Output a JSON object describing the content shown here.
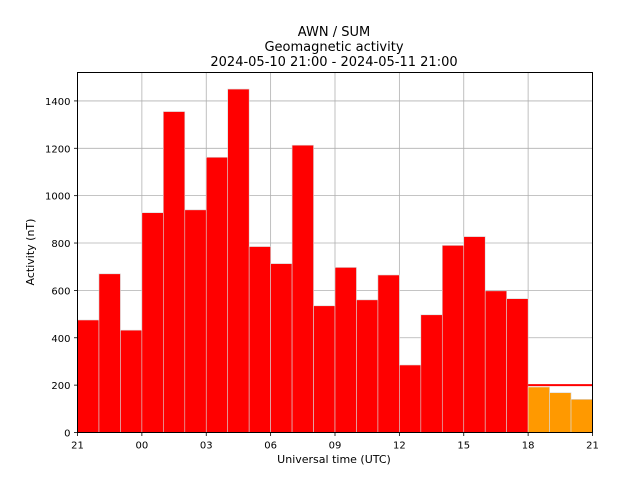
{
  "chart_data": {
    "type": "bar",
    "title_lines": [
      "AWN / SUM",
      "Geomagnetic activity",
      "2024-05-10 21:00 - 2024-05-11 21:00"
    ],
    "xlabel": "Universal time (UTC)",
    "ylabel": "Activity (nT)",
    "x_tick_labels": [
      "21",
      "00",
      "03",
      "06",
      "09",
      "12",
      "15",
      "18",
      "21"
    ],
    "y_ticks": [
      0,
      200,
      400,
      600,
      800,
      1000,
      1200,
      1400
    ],
    "xlim": [
      0,
      24
    ],
    "ylim": [
      0,
      1520
    ],
    "grid": true,
    "threshold": {
      "value": 200,
      "x_start": 21,
      "x_end": 24,
      "color": "#ff0000"
    },
    "bars": [
      {
        "hour_offset": 0,
        "value": 475,
        "color": "#ff0000"
      },
      {
        "hour_offset": 1,
        "value": 670,
        "color": "#ff0000"
      },
      {
        "hour_offset": 2,
        "value": 432,
        "color": "#ff0000"
      },
      {
        "hour_offset": 3,
        "value": 928,
        "color": "#ff0000"
      },
      {
        "hour_offset": 4,
        "value": 1355,
        "color": "#ff0000"
      },
      {
        "hour_offset": 5,
        "value": 940,
        "color": "#ff0000"
      },
      {
        "hour_offset": 6,
        "value": 1162,
        "color": "#ff0000"
      },
      {
        "hour_offset": 7,
        "value": 1450,
        "color": "#ff0000"
      },
      {
        "hour_offset": 8,
        "value": 785,
        "color": "#ff0000"
      },
      {
        "hour_offset": 9,
        "value": 713,
        "color": "#ff0000"
      },
      {
        "hour_offset": 10,
        "value": 1213,
        "color": "#ff0000"
      },
      {
        "hour_offset": 11,
        "value": 535,
        "color": "#ff0000"
      },
      {
        "hour_offset": 12,
        "value": 697,
        "color": "#ff0000"
      },
      {
        "hour_offset": 13,
        "value": 560,
        "color": "#ff0000"
      },
      {
        "hour_offset": 14,
        "value": 665,
        "color": "#ff0000"
      },
      {
        "hour_offset": 15,
        "value": 285,
        "color": "#ff0000"
      },
      {
        "hour_offset": 16,
        "value": 497,
        "color": "#ff0000"
      },
      {
        "hour_offset": 17,
        "value": 790,
        "color": "#ff0000"
      },
      {
        "hour_offset": 18,
        "value": 827,
        "color": "#ff0000"
      },
      {
        "hour_offset": 19,
        "value": 598,
        "color": "#ff0000"
      },
      {
        "hour_offset": 20,
        "value": 565,
        "color": "#ff0000"
      },
      {
        "hour_offset": 21,
        "value": 192,
        "color": "#ff9900"
      },
      {
        "hour_offset": 22,
        "value": 168,
        "color": "#ff9900"
      },
      {
        "hour_offset": 23,
        "value": 140,
        "color": "#ff9900"
      }
    ]
  }
}
